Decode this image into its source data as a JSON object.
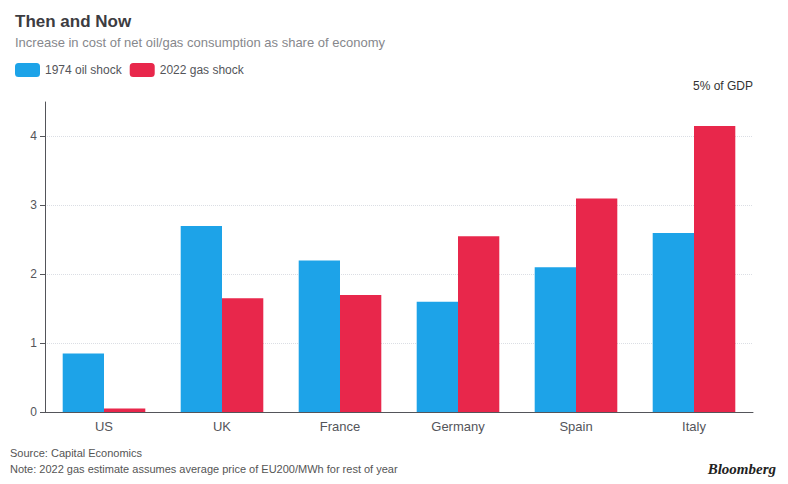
{
  "chart_data": {
    "type": "bar",
    "title": "Then and Now",
    "subtitle": "Increase in cost of net oil/gas consumption as share of economy",
    "categories": [
      "US",
      "UK",
      "France",
      "Germany",
      "Spain",
      "Italy"
    ],
    "series": [
      {
        "name": "1974 oil shock",
        "color": "#1da3e8",
        "values": [
          0.85,
          2.7,
          2.2,
          1.6,
          2.1,
          2.6
        ]
      },
      {
        "name": "2022 gas shock",
        "color": "#e8274b",
        "values": [
          0.05,
          1.65,
          1.7,
          2.55,
          3.1,
          4.15
        ]
      }
    ],
    "ylabel": "5% of GDP",
    "ylim": [
      0,
      4.5
    ],
    "yticks": [
      0,
      1,
      2,
      3,
      4
    ],
    "grid": true,
    "legend": "top left",
    "source": "Source: Capital Economics",
    "note": "Note: 2022 gas estimate assumes average price of EU200/MWh for rest of year",
    "annotations": [
      "Bloomberg"
    ]
  }
}
